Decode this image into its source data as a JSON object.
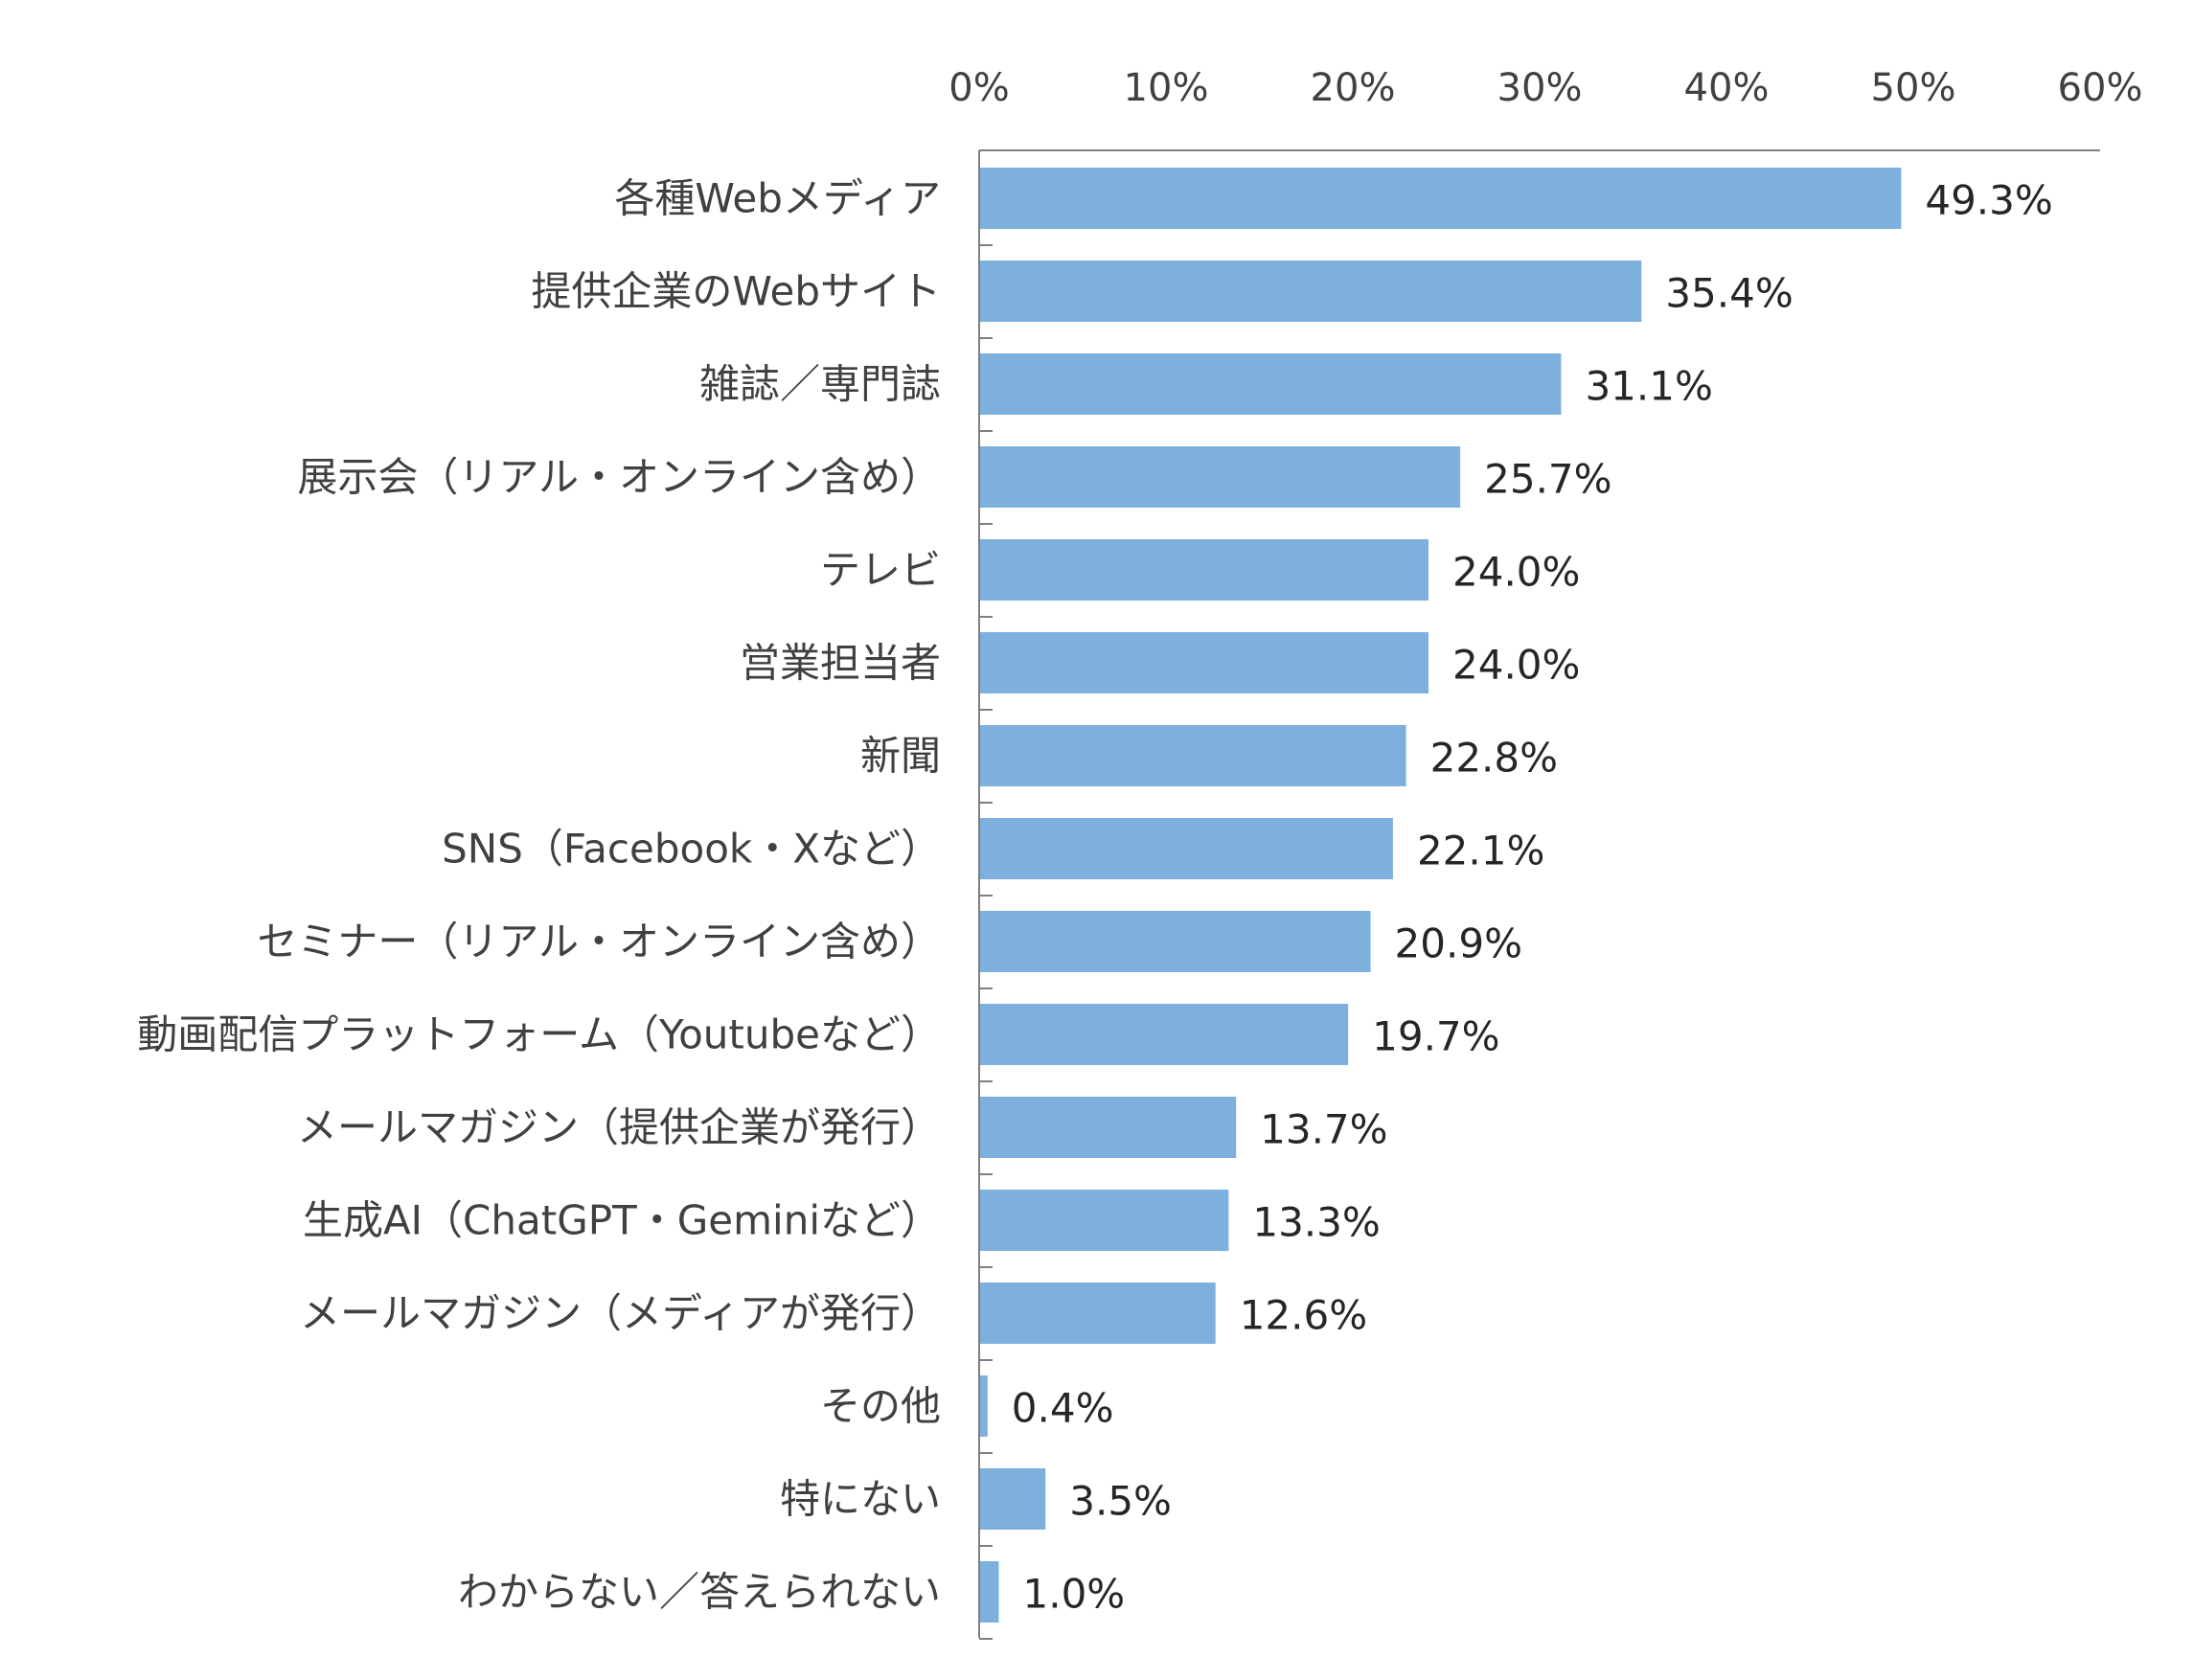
{
  "chart_data": {
    "type": "bar",
    "orientation": "horizontal",
    "categories": [
      "各種Webメディア",
      "提供企業のWebサイト",
      "雑誌／専門誌",
      "展示会（リアル・オンライン含め）",
      "テレビ",
      "営業担当者",
      "新聞",
      "SNS（Facebook・Xなど）",
      "セミナー（リアル・オンライン含め）",
      "動画配信プラットフォーム（Youtubeなど）",
      "メールマガジン（提供企業が発行）",
      "生成AI（ChatGPT・Geminiなど）",
      "メールマガジン（メディアが発行）",
      "その他",
      "特にない",
      "わからない／答えられない"
    ],
    "values": [
      49.3,
      35.4,
      31.1,
      25.7,
      24.0,
      24.0,
      22.8,
      22.1,
      20.9,
      19.7,
      13.7,
      13.3,
      12.6,
      0.4,
      3.5,
      1.0
    ],
    "value_labels": [
      "49.3%",
      "35.4%",
      "31.1%",
      "25.7%",
      "24.0%",
      "24.0%",
      "22.8%",
      "22.1%",
      "20.9%",
      "19.7%",
      "13.7%",
      "13.3%",
      "12.6%",
      "0.4%",
      "3.5%",
      "1.0%"
    ],
    "xlim": [
      0,
      60
    ],
    "ticks": [
      0,
      10,
      20,
      30,
      40,
      50,
      60
    ],
    "tick_labels": [
      "0%",
      "10%",
      "20%",
      "30%",
      "40%",
      "50%",
      "60%"
    ],
    "axis_position": "top",
    "grid": false,
    "bar_color": "#7EB0DE"
  }
}
